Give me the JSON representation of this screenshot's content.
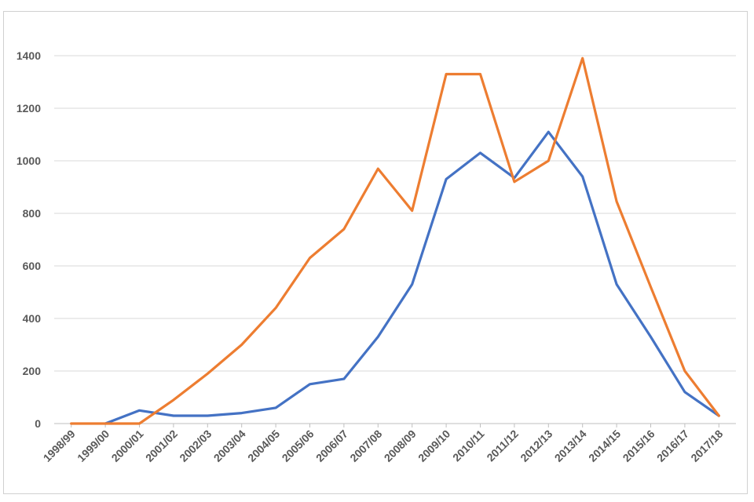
{
  "chart_data": {
    "type": "line",
    "title": "",
    "xlabel": "",
    "ylabel": "",
    "ylim": [
      0,
      1400
    ],
    "yticks": [
      0,
      200,
      400,
      600,
      800,
      1000,
      1200,
      1400
    ],
    "grid": true,
    "legend": "none",
    "categories": [
      "1998/99",
      "1999/00",
      "2000/01",
      "2001/02",
      "2002/03",
      "2003/04",
      "2004/05",
      "2005/06",
      "2006/07",
      "2007/08",
      "2008/09",
      "2009/10",
      "2010/11",
      "2011/12",
      "2012/13",
      "2013/14",
      "2014/15",
      "2015/16",
      "2016/17",
      "2017/18"
    ],
    "series": [
      {
        "color": "#4472c4",
        "values": [
          null,
          0,
          50,
          30,
          30,
          40,
          60,
          150,
          170,
          330,
          530,
          930,
          1030,
          935,
          1110,
          940,
          530,
          330,
          120,
          30
        ]
      },
      {
        "color": "#ed7d31",
        "values": [
          0,
          0,
          0,
          90,
          190,
          300,
          440,
          630,
          740,
          970,
          810,
          1330,
          1330,
          920,
          1000,
          1390,
          845,
          520,
          200,
          30
        ]
      }
    ]
  }
}
